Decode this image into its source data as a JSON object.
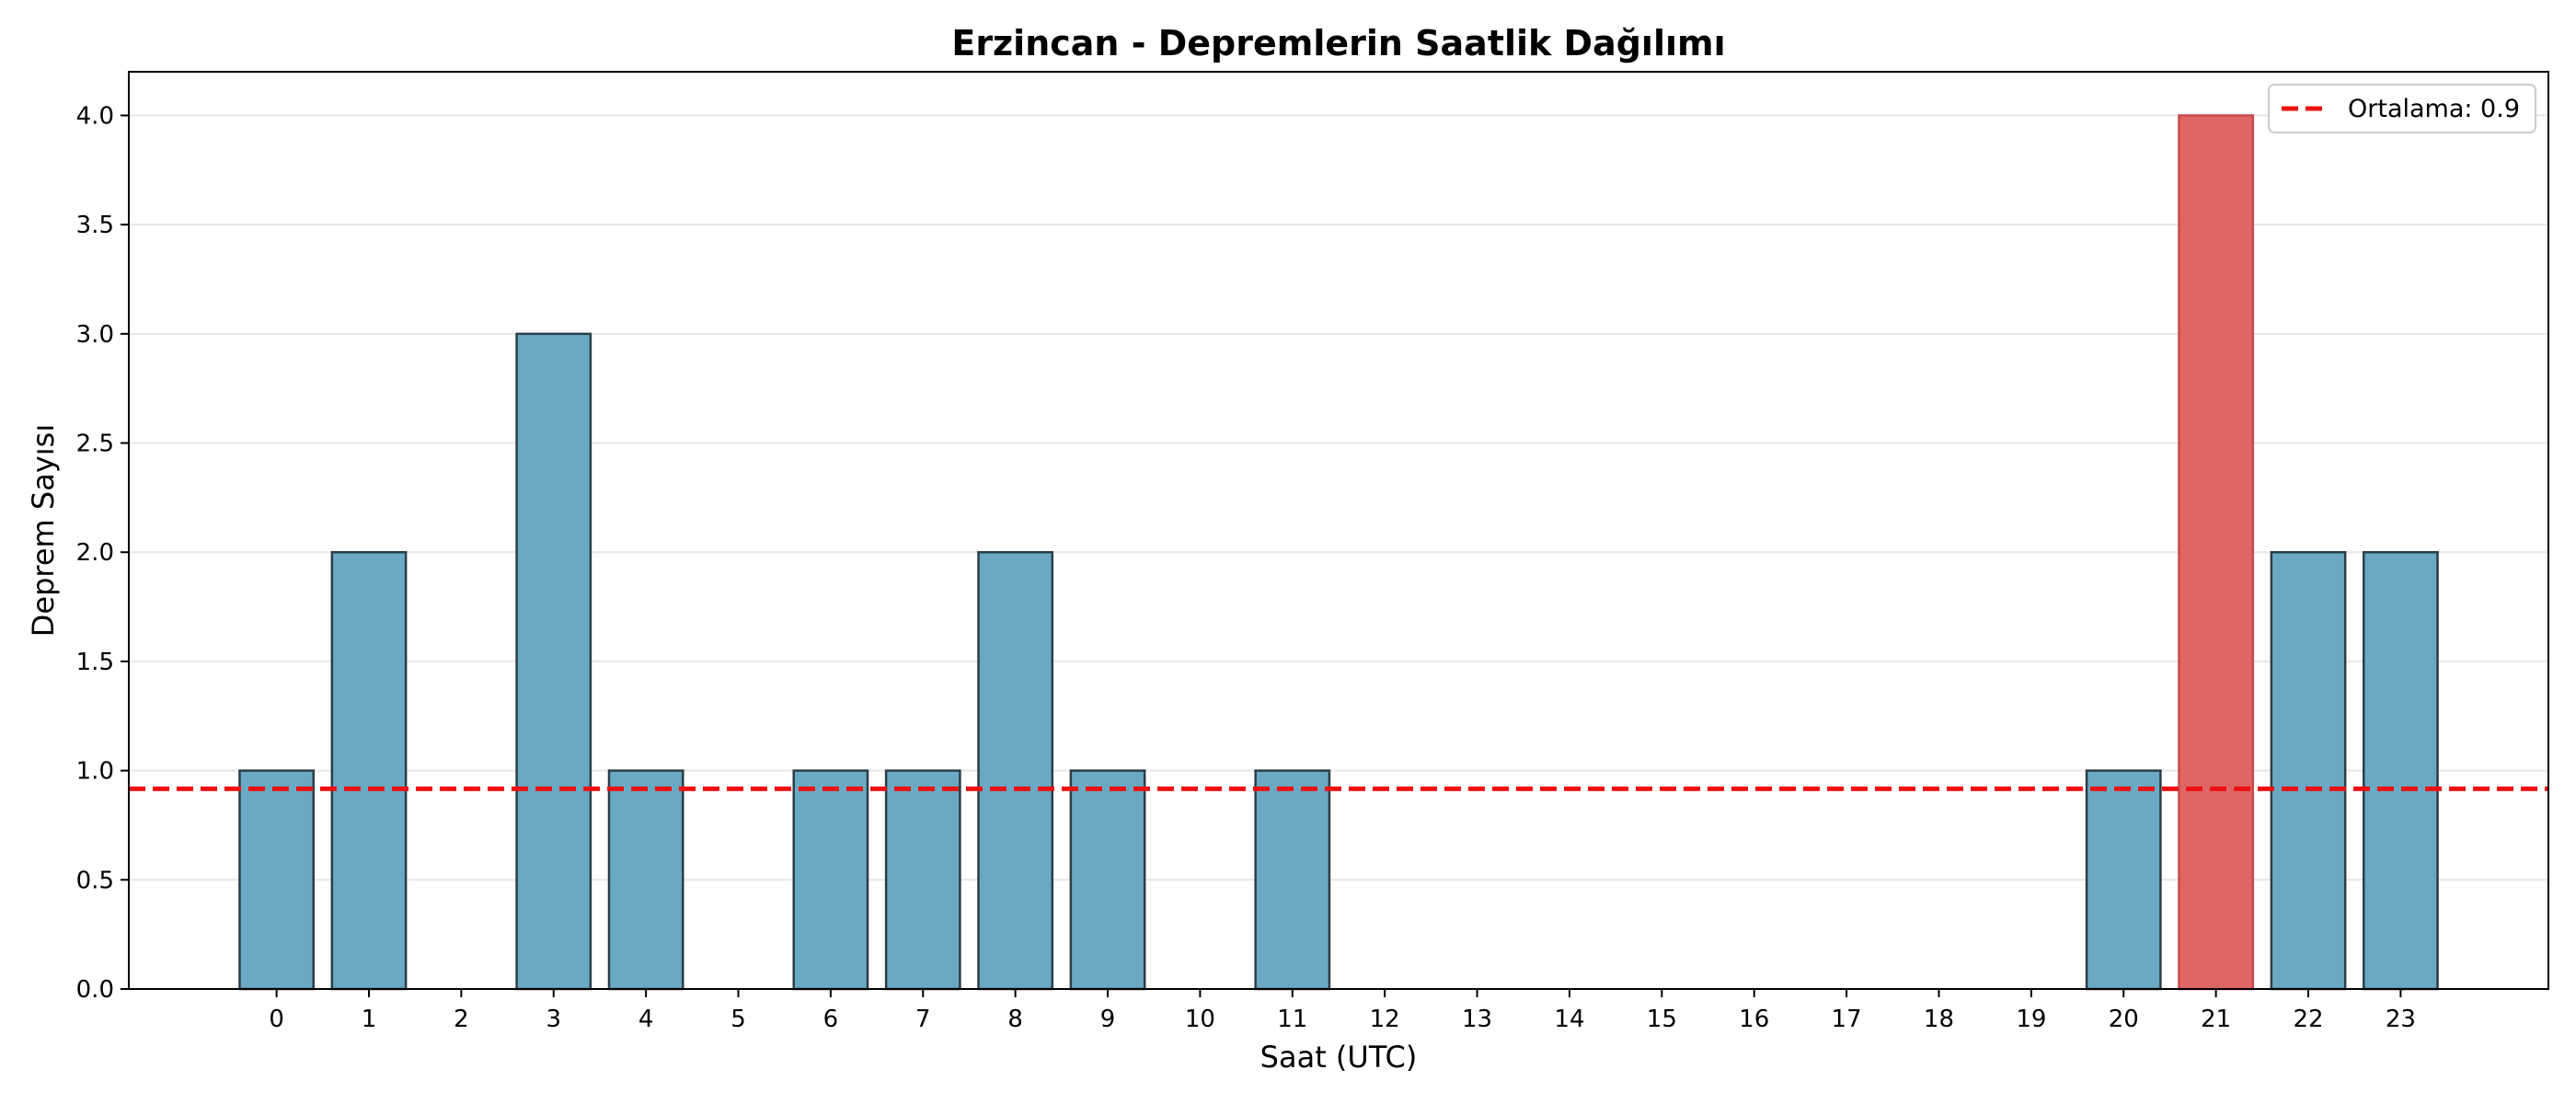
{
  "chart_data": {
    "type": "bar",
    "title": "Erzincan - Depremlerin Saatlik Dağılımı",
    "xlabel": "Saat (UTC)",
    "ylabel": "Deprem Sayısı",
    "categories": [
      "0",
      "1",
      "2",
      "3",
      "4",
      "5",
      "6",
      "7",
      "8",
      "9",
      "10",
      "11",
      "12",
      "13",
      "14",
      "15",
      "16",
      "17",
      "18",
      "19",
      "20",
      "21",
      "22",
      "23"
    ],
    "values": [
      1,
      2,
      0,
      3,
      1,
      0,
      1,
      1,
      2,
      1,
      0,
      1,
      0,
      0,
      0,
      0,
      0,
      0,
      0,
      0,
      1,
      4,
      2,
      2
    ],
    "highlight_index": 21,
    "ylim": [
      0,
      4.2
    ],
    "yticks": [
      "0.0",
      "0.5",
      "1.0",
      "1.5",
      "2.0",
      "2.5",
      "3.0",
      "3.5",
      "4.0"
    ],
    "grid": "horizontal",
    "mean_line": {
      "value": 0.917,
      "label": "Ortalama: 0.9"
    },
    "legend_position": "top-right",
    "colors": {
      "bar": "#6aa9c4",
      "bar_edge": "#2b3d47",
      "highlight": "#e06666",
      "highlight_edge": "#c94a4a",
      "mean_line": "#ee1111",
      "grid": "#e6e6e6"
    }
  }
}
